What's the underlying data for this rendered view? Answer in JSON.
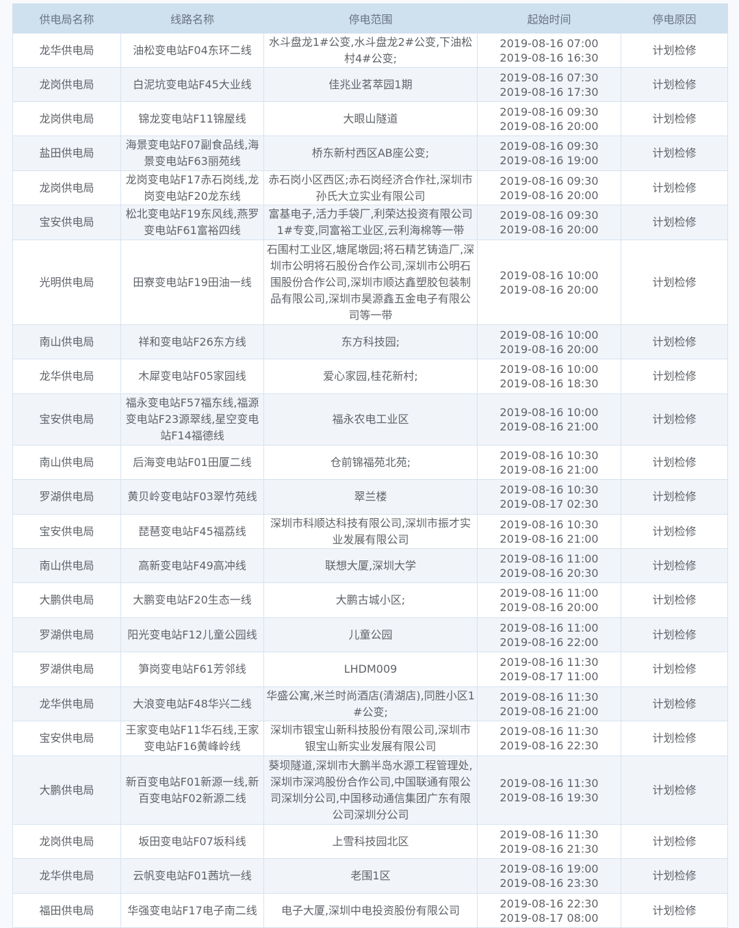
{
  "colors": {
    "header_bg": "#cfe0ef",
    "row_alt": "#f1f5fa",
    "text": "#5f6368",
    "border": "#d6e2ee"
  },
  "headers": [
    "供电局名称",
    "线路名称",
    "停电范围",
    "起始时间",
    "停电原因"
  ],
  "rows": [
    {
      "bureau": "龙华供电局",
      "line": "油松变电站F04东环二线",
      "area": "水斗盘龙1#公变,水斗盘龙2#公变,下油松村4#公变;",
      "start": "2019-08-16 07:00",
      "end": "2019-08-16 16:30",
      "reason": "计划检修"
    },
    {
      "bureau": "龙岗供电局",
      "line": "白泥坑变电站F45大业线",
      "area": "佳兆业茗萃园1期",
      "start": "2019-08-16 07:30",
      "end": "2019-08-16 17:30",
      "reason": "计划检修"
    },
    {
      "bureau": "龙岗供电局",
      "line": "锦龙变电站F11锦屋线",
      "area": "大眼山隧道",
      "start": "2019-08-16 09:30",
      "end": "2019-08-16 20:00",
      "reason": "计划检修"
    },
    {
      "bureau": "盐田供电局",
      "line": "海景变电站F07副食品线,海景变电站F63丽苑线",
      "area": "桥东新村西区AB座公变;",
      "start": "2019-08-16 09:30",
      "end": "2019-08-16 19:00",
      "reason": "计划检修"
    },
    {
      "bureau": "龙岗供电局",
      "line": "龙岗变电站F17赤石岗线,龙岗变电站F20龙东线",
      "area": "赤石岗小区西区;赤石岗经济合作社,深圳市孙氏大立实业有限公司",
      "start": "2019-08-16 09:30",
      "end": "2019-08-16 20:00",
      "reason": "计划检修"
    },
    {
      "bureau": "宝安供电局",
      "line": "松北变电站F19东风线,燕罗变电站F61富裕四线",
      "area": "富基电子,活力手袋厂,利荣达投资有限公司1#专变,同富裕工业区,云利海棉等一带",
      "start": "2019-08-16 09:30",
      "end": "2019-08-16 20:00",
      "reason": "计划检修"
    },
    {
      "bureau": "光明供电局",
      "line": "田寮变电站F19田油一线",
      "area": "石围村工业区,塘尾墩园;将石精艺铸造厂,深圳市公明将石股份合作公司,深圳市公明石围股份合作公司,深圳市顺达鑫塑胶包装制品有限公司,深圳市昊源鑫五金电子有限公司等一带",
      "start": "2019-08-16 10:00",
      "end": "2019-08-16 20:00",
      "reason": "计划检修"
    },
    {
      "bureau": "南山供电局",
      "line": "祥和变电站F26东方线",
      "area": "东方科技园;",
      "start": "2019-08-16 10:00",
      "end": "2019-08-16 20:00",
      "reason": "计划检修"
    },
    {
      "bureau": "龙华供电局",
      "line": "木犀变电站F05家园线",
      "area": "爱心家园,桂花新村;",
      "start": "2019-08-16 10:00",
      "end": "2019-08-16 18:30",
      "reason": "计划检修"
    },
    {
      "bureau": "宝安供电局",
      "line": "福永变电站F57福东线,福源变电站F23源翠线,星空变电站F14福德线",
      "area": "福永农电工业区",
      "start": "2019-08-16 10:00",
      "end": "2019-08-16 21:00",
      "reason": "计划检修"
    },
    {
      "bureau": "南山供电局",
      "line": "后海变电站F01田厦二线",
      "area": "仓前锦福苑北苑;",
      "start": "2019-08-16 10:30",
      "end": "2019-08-16 21:00",
      "reason": "计划检修"
    },
    {
      "bureau": "罗湖供电局",
      "line": "黄贝岭变电站F03翠竹苑线",
      "area": "翠兰楼",
      "start": "2019-08-16 10:30",
      "end": "2019-08-17 02:30",
      "reason": "计划检修"
    },
    {
      "bureau": "宝安供电局",
      "line": "琵琶变电站F45福荔线",
      "area": "深圳市科顺达科技有限公司,深圳市振才实业发展有限公司",
      "start": "2019-08-16 10:30",
      "end": "2019-08-16 21:00",
      "reason": "计划检修"
    },
    {
      "bureau": "南山供电局",
      "line": "高新变电站F49高冲线",
      "area": "联想大厦,深圳大学",
      "start": "2019-08-16 11:00",
      "end": "2019-08-16 20:30",
      "reason": "计划检修"
    },
    {
      "bureau": "大鹏供电局",
      "line": "大鹏变电站F20生态一线",
      "area": "大鹏古城小区;",
      "start": "2019-08-16 11:00",
      "end": "2019-08-16 20:00",
      "reason": "计划检修"
    },
    {
      "bureau": "罗湖供电局",
      "line": "阳光变电站F12儿童公园线",
      "area": "儿童公园",
      "start": "2019-08-16 11:00",
      "end": "2019-08-16 22:00",
      "reason": "计划检修"
    },
    {
      "bureau": "罗湖供电局",
      "line": "笋岗变电站F61芳邻线",
      "area": "LHDM009",
      "start": "2019-08-16 11:30",
      "end": "2019-08-17 11:00",
      "reason": "计划检修"
    },
    {
      "bureau": "龙华供电局",
      "line": "大浪变电站F48华兴二线",
      "area": "华盛公寓,米兰时尚酒店(清湖店),同胜小区1#公变;",
      "start": "2019-08-16 11:30",
      "end": "2019-08-16 21:00",
      "reason": "计划检修"
    },
    {
      "bureau": "宝安供电局",
      "line": "王家变电站F11华石线,王家变电站F16黄峰岭线",
      "area": "深圳市银宝山新科技股份有限公司,深圳市银宝山新实业发展有限公司",
      "start": "2019-08-16 11:30",
      "end": "2019-08-16 22:30",
      "reason": "计划检修"
    },
    {
      "bureau": "大鹏供电局",
      "line": "新百变电站F01新源一线,新百变电站F02新源二线",
      "area": "葵坝隧道,深圳市大鹏半岛水源工程管理处,深圳市深鸿股份合作公司,中国联通有限公司深圳分公司,中国移动通信集团广东有限公司深圳分公司",
      "start": "2019-08-16 11:30",
      "end": "2019-08-16 19:30",
      "reason": "计划检修"
    },
    {
      "bureau": "龙岗供电局",
      "line": "坂田变电站F07坂科线",
      "area": "上雪科技园北区",
      "start": "2019-08-16 11:30",
      "end": "2019-08-16 21:30",
      "reason": "计划检修"
    },
    {
      "bureau": "龙华供电局",
      "line": "云帆变电站F01茜坑一线",
      "area": "老围1区",
      "start": "2019-08-16 19:00",
      "end": "2019-08-16 23:30",
      "reason": "计划检修"
    },
    {
      "bureau": "福田供电局",
      "line": "华强变电站F17电子南二线",
      "area": "电子大厦,深圳中电投资股份有限公司",
      "start": "2019-08-16 22:30",
      "end": "2019-08-17 08:00",
      "reason": "计划检修"
    }
  ]
}
